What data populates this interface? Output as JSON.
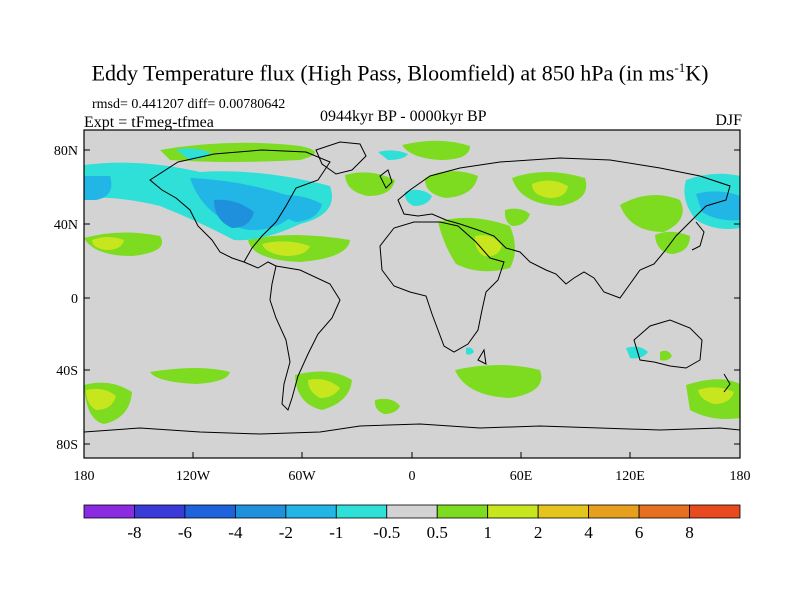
{
  "title": {
    "main": "Eddy Temperature flux (High Pass, Bloomfield) at 850 hPa (in ms",
    "sup": "-1",
    "tail": "K)"
  },
  "stats": "rmsd= 0.441207 diff= 0.00780642",
  "expt": "Expt = tFmeg-tfmea",
  "period": "0944kyr BP - 0000kyr BP",
  "season": "DJF",
  "lat_labels": [
    "80N",
    "40N",
    "0",
    "40S",
    "80S"
  ],
  "lon_labels": [
    "180",
    "120W",
    "60W",
    "0",
    "60E",
    "120E",
    "180"
  ],
  "colorbar": {
    "colors": [
      "#8a2be2",
      "#3a3ad8",
      "#1e63dc",
      "#1e90dc",
      "#21b6e6",
      "#2ee0d8",
      "#d3d3d3",
      "#7ddc1f",
      "#c8e61e",
      "#e6c41e",
      "#e6a01e",
      "#e67020",
      "#e64a1e"
    ],
    "labels": [
      "-8",
      "-6",
      "-4",
      "-2",
      "-1",
      "-0.5",
      "0.5",
      "1",
      "2",
      "4",
      "6",
      "8"
    ]
  },
  "colors": {
    "background_field": "#d3d3d3",
    "coast": "#000000"
  }
}
